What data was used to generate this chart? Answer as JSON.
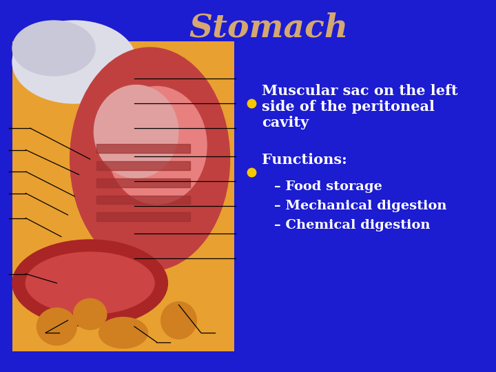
{
  "background_color": "#1c1cd0",
  "title": "Stomach",
  "title_color": "#d4a870",
  "title_fontsize": 34,
  "bullet_color": "#f5c800",
  "text_color": "#ffffff",
  "bullet1_line1": "Muscular sac on the left",
  "bullet1_line2": "side of the peritoneal",
  "bullet1_line3": "cavity",
  "bullet2": "Functions:",
  "sub_bullets": [
    "– Food storage",
    "– Mechanical digestion",
    "– Chemical digestion"
  ],
  "bullet_fontsize": 15,
  "sub_bullet_fontsize": 14
}
